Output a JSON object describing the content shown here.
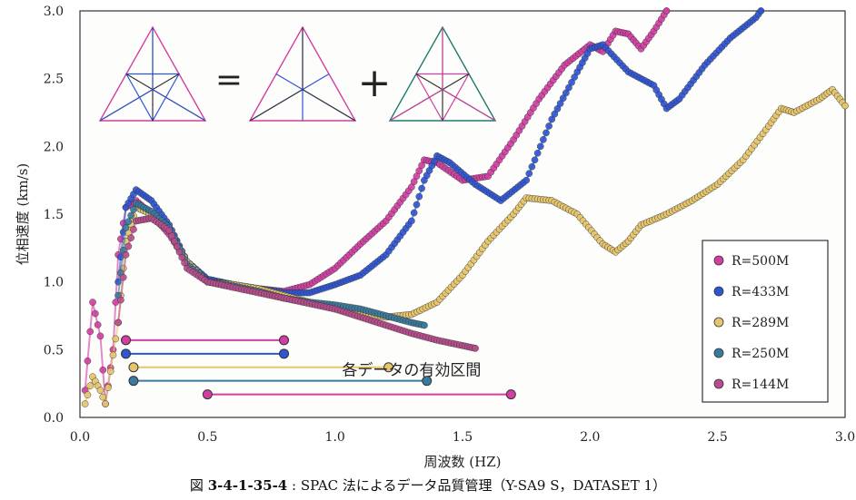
{
  "chart_data": {
    "type": "scatter",
    "xlabel": "周波数 (HZ)",
    "ylabel": "位相速度 (km/s)",
    "xlim": [
      0,
      3.0
    ],
    "ylim": [
      0,
      3.0
    ],
    "x_ticks": [
      "0.0",
      "0.5",
      "1.0",
      "1.5",
      "2.0",
      "2.5",
      "3.0"
    ],
    "y_ticks": [
      "0.0",
      "0.5",
      "1.0",
      "1.5",
      "2.0",
      "2.5",
      "3.0"
    ],
    "grid": true,
    "legend_position": "right",
    "series": [
      {
        "name": "R=500M",
        "color": "#d23ea3",
        "points": [
          [
            0.02,
            0.2
          ],
          [
            0.05,
            0.85
          ],
          [
            0.08,
            0.6
          ],
          [
            0.1,
            0.1
          ],
          [
            0.13,
            0.5
          ],
          [
            0.15,
            1.2
          ],
          [
            0.18,
            1.55
          ],
          [
            0.22,
            1.6
          ],
          [
            0.28,
            1.5
          ],
          [
            0.35,
            1.35
          ],
          [
            0.42,
            1.15
          ],
          [
            0.5,
            1.02
          ],
          [
            0.6,
            0.98
          ],
          [
            0.7,
            0.95
          ],
          [
            0.8,
            0.93
          ],
          [
            0.9,
            0.98
          ],
          [
            1.0,
            1.1
          ],
          [
            1.1,
            1.28
          ],
          [
            1.2,
            1.45
          ],
          [
            1.3,
            1.7
          ],
          [
            1.35,
            1.9
          ],
          [
            1.4,
            1.88
          ],
          [
            1.5,
            1.75
          ],
          [
            1.6,
            1.78
          ],
          [
            1.7,
            2.05
          ],
          [
            1.8,
            2.35
          ],
          [
            1.9,
            2.6
          ],
          [
            2.0,
            2.75
          ],
          [
            2.05,
            2.7
          ],
          [
            2.1,
            2.85
          ],
          [
            2.15,
            2.83
          ],
          [
            2.2,
            2.72
          ],
          [
            2.25,
            2.85
          ],
          [
            2.3,
            3.0
          ]
        ]
      },
      {
        "name": "R=433M",
        "color": "#2f55d4",
        "points": [
          [
            0.15,
            1.0
          ],
          [
            0.18,
            1.55
          ],
          [
            0.22,
            1.68
          ],
          [
            0.28,
            1.6
          ],
          [
            0.35,
            1.42
          ],
          [
            0.42,
            1.15
          ],
          [
            0.5,
            1.02
          ],
          [
            0.6,
            0.98
          ],
          [
            0.7,
            0.95
          ],
          [
            0.8,
            0.92
          ],
          [
            0.9,
            0.92
          ],
          [
            1.0,
            0.98
          ],
          [
            1.1,
            1.05
          ],
          [
            1.2,
            1.2
          ],
          [
            1.3,
            1.45
          ],
          [
            1.35,
            1.75
          ],
          [
            1.4,
            1.93
          ],
          [
            1.45,
            1.88
          ],
          [
            1.55,
            1.72
          ],
          [
            1.65,
            1.6
          ],
          [
            1.75,
            1.75
          ],
          [
            1.85,
            2.2
          ],
          [
            1.95,
            2.55
          ],
          [
            2.0,
            2.72
          ],
          [
            2.05,
            2.75
          ],
          [
            2.15,
            2.55
          ],
          [
            2.25,
            2.45
          ],
          [
            2.3,
            2.28
          ],
          [
            2.35,
            2.35
          ],
          [
            2.45,
            2.6
          ],
          [
            2.55,
            2.8
          ],
          [
            2.65,
            2.95
          ],
          [
            2.67,
            3.0
          ]
        ]
      },
      {
        "name": "R=289M",
        "color": "#e6c56b",
        "points": [
          [
            0.02,
            0.1
          ],
          [
            0.05,
            0.3
          ],
          [
            0.08,
            0.2
          ],
          [
            0.1,
            0.1
          ],
          [
            0.15,
            0.7
          ],
          [
            0.18,
            1.3
          ],
          [
            0.22,
            1.55
          ],
          [
            0.28,
            1.5
          ],
          [
            0.35,
            1.38
          ],
          [
            0.42,
            1.15
          ],
          [
            0.5,
            1.0
          ],
          [
            0.6,
            0.98
          ],
          [
            0.7,
            0.95
          ],
          [
            0.8,
            0.9
          ],
          [
            0.9,
            0.85
          ],
          [
            1.0,
            0.8
          ],
          [
            1.1,
            0.77
          ],
          [
            1.2,
            0.74
          ],
          [
            1.3,
            0.76
          ],
          [
            1.4,
            0.85
          ],
          [
            1.5,
            1.05
          ],
          [
            1.6,
            1.3
          ],
          [
            1.7,
            1.5
          ],
          [
            1.75,
            1.62
          ],
          [
            1.85,
            1.6
          ],
          [
            1.95,
            1.5
          ],
          [
            2.05,
            1.28
          ],
          [
            2.1,
            1.22
          ],
          [
            2.15,
            1.3
          ],
          [
            2.2,
            1.42
          ],
          [
            2.3,
            1.5
          ],
          [
            2.4,
            1.6
          ],
          [
            2.5,
            1.72
          ],
          [
            2.6,
            1.9
          ],
          [
            2.7,
            2.15
          ],
          [
            2.75,
            2.28
          ],
          [
            2.8,
            2.25
          ],
          [
            2.9,
            2.35
          ],
          [
            2.95,
            2.42
          ],
          [
            3.0,
            2.3
          ]
        ]
      },
      {
        "name": "R=250M",
        "color": "#3a7a9e",
        "points": [
          [
            0.15,
            0.9
          ],
          [
            0.18,
            1.4
          ],
          [
            0.22,
            1.58
          ],
          [
            0.28,
            1.52
          ],
          [
            0.35,
            1.4
          ],
          [
            0.42,
            1.13
          ],
          [
            0.5,
            1.0
          ],
          [
            0.6,
            0.97
          ],
          [
            0.7,
            0.93
          ],
          [
            0.8,
            0.88
          ],
          [
            0.9,
            0.85
          ],
          [
            1.0,
            0.83
          ],
          [
            1.1,
            0.8
          ],
          [
            1.2,
            0.75
          ],
          [
            1.3,
            0.7
          ],
          [
            1.35,
            0.68
          ]
        ]
      },
      {
        "name": "R=144M",
        "color": "#b84c8c",
        "points": [
          [
            0.15,
            0.7
          ],
          [
            0.18,
            1.2
          ],
          [
            0.22,
            1.45
          ],
          [
            0.28,
            1.47
          ],
          [
            0.35,
            1.38
          ],
          [
            0.42,
            1.1
          ],
          [
            0.5,
            1.0
          ],
          [
            0.6,
            0.96
          ],
          [
            0.7,
            0.92
          ],
          [
            0.8,
            0.88
          ],
          [
            0.9,
            0.84
          ],
          [
            1.0,
            0.8
          ],
          [
            1.1,
            0.74
          ],
          [
            1.2,
            0.68
          ],
          [
            1.3,
            0.62
          ],
          [
            1.4,
            0.57
          ],
          [
            1.5,
            0.53
          ],
          [
            1.55,
            0.51
          ]
        ]
      }
    ],
    "valid_ranges": [
      {
        "series": "R=500M",
        "from": 0.18,
        "to": 0.8,
        "y": 0.57,
        "color": "#d23ea3"
      },
      {
        "series": "R=433M",
        "from": 0.18,
        "to": 0.8,
        "y": 0.47,
        "color": "#2f55d4"
      },
      {
        "series": "R=289M",
        "from": 0.21,
        "to": 1.21,
        "y": 0.37,
        "color": "#e6c56b"
      },
      {
        "series": "R=250M",
        "from": 0.21,
        "to": 1.36,
        "y": 0.27,
        "color": "#3a7a9e"
      },
      {
        "series": "R=144M",
        "from": 0.5,
        "to": 1.69,
        "y": 0.17,
        "color": "#d23ea3"
      }
    ],
    "annotation": "各データの有効区間",
    "inset_symbols": [
      "=",
      "+"
    ]
  },
  "caption": {
    "prefix": "図",
    "number": "3-4-1-35-4",
    "text": ": SPAC 法によるデータ品質管理（Y-SA9 S，DATASET 1）"
  }
}
